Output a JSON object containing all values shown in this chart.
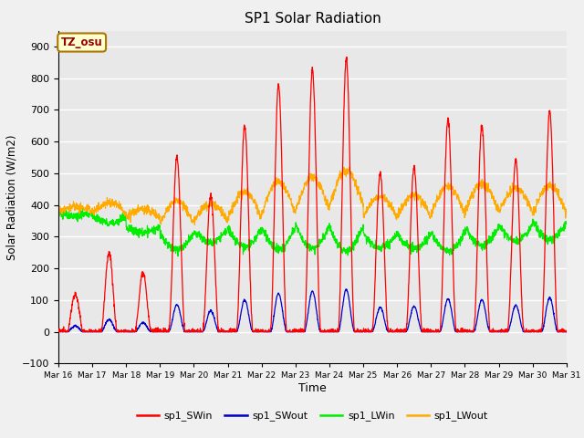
{
  "title": "SP1 Solar Radiation",
  "xlabel": "Time",
  "ylabel": "Solar Radiation (W/m2)",
  "ylim": [
    -100,
    950
  ],
  "yticks": [
    -100,
    0,
    100,
    200,
    300,
    400,
    500,
    600,
    700,
    800,
    900
  ],
  "x_tick_labels": [
    "Mar 16",
    "Mar 17",
    "Mar 18",
    "Mar 19",
    "Mar 20",
    "Mar 21",
    "Mar 22",
    "Mar 23",
    "Mar 24",
    "Mar 25",
    "Mar 26",
    "Mar 27",
    "Mar 28",
    "Mar 29",
    "Mar 30",
    "Mar 31"
  ],
  "annotation_text": "TZ_osu",
  "line_colors": {
    "sp1_SWin": "#ff0000",
    "sp1_SWout": "#0000cc",
    "sp1_LWin": "#00ee00",
    "sp1_LWout": "#ffaa00"
  },
  "legend_labels": [
    "sp1_SWin",
    "sp1_SWout",
    "sp1_LWin",
    "sp1_LWout"
  ],
  "plot_bg_color": "#e8e8e8",
  "fig_bg_color": "#f0f0f0",
  "grid_color": "#ffffff",
  "num_days": 15,
  "pts_per_day": 144,
  "SWin_peaks": [
    120,
    250,
    190,
    550,
    430,
    650,
    780,
    830,
    860,
    500,
    520,
    670,
    650,
    540,
    695
  ],
  "LWin_bases": [
    375,
    365,
    330,
    310,
    320,
    325,
    330,
    335,
    330,
    310,
    310,
    315,
    330,
    335,
    350
  ],
  "LWout_bases": [
    380,
    375,
    362,
    342,
    348,
    358,
    372,
    382,
    398,
    362,
    362,
    372,
    382,
    382,
    372
  ]
}
